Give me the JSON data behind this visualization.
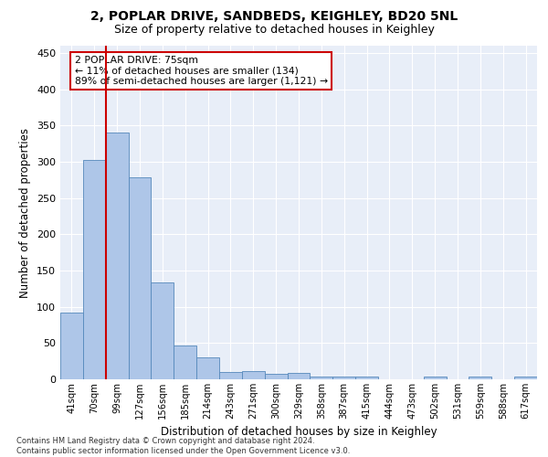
{
  "title": "2, POPLAR DRIVE, SANDBEDS, KEIGHLEY, BD20 5NL",
  "subtitle": "Size of property relative to detached houses in Keighley",
  "xlabel": "Distribution of detached houses by size in Keighley",
  "ylabel": "Number of detached properties",
  "categories": [
    "41sqm",
    "70sqm",
    "99sqm",
    "127sqm",
    "156sqm",
    "185sqm",
    "214sqm",
    "243sqm",
    "271sqm",
    "300sqm",
    "329sqm",
    "358sqm",
    "387sqm",
    "415sqm",
    "444sqm",
    "473sqm",
    "502sqm",
    "531sqm",
    "559sqm",
    "588sqm",
    "617sqm"
  ],
  "values": [
    92,
    302,
    340,
    278,
    133,
    47,
    30,
    10,
    11,
    8,
    9,
    4,
    4,
    4,
    0,
    0,
    4,
    0,
    4,
    0,
    4
  ],
  "bar_color": "#aec6e8",
  "bar_edge_color": "#5588bb",
  "vline_color": "#cc0000",
  "annotation_text": "2 POPLAR DRIVE: 75sqm\n← 11% of detached houses are smaller (134)\n89% of semi-detached houses are larger (1,121) →",
  "annotation_box_color": "#cc0000",
  "ylim": [
    0,
    460
  ],
  "yticks": [
    0,
    50,
    100,
    150,
    200,
    250,
    300,
    350,
    400,
    450
  ],
  "background_color": "#e8eef8",
  "footer_text": "Contains HM Land Registry data © Crown copyright and database right 2024.\nContains public sector information licensed under the Open Government Licence v3.0.",
  "title_fontsize": 10,
  "subtitle_fontsize": 9,
  "xlabel_fontsize": 8.5,
  "ylabel_fontsize": 8.5
}
